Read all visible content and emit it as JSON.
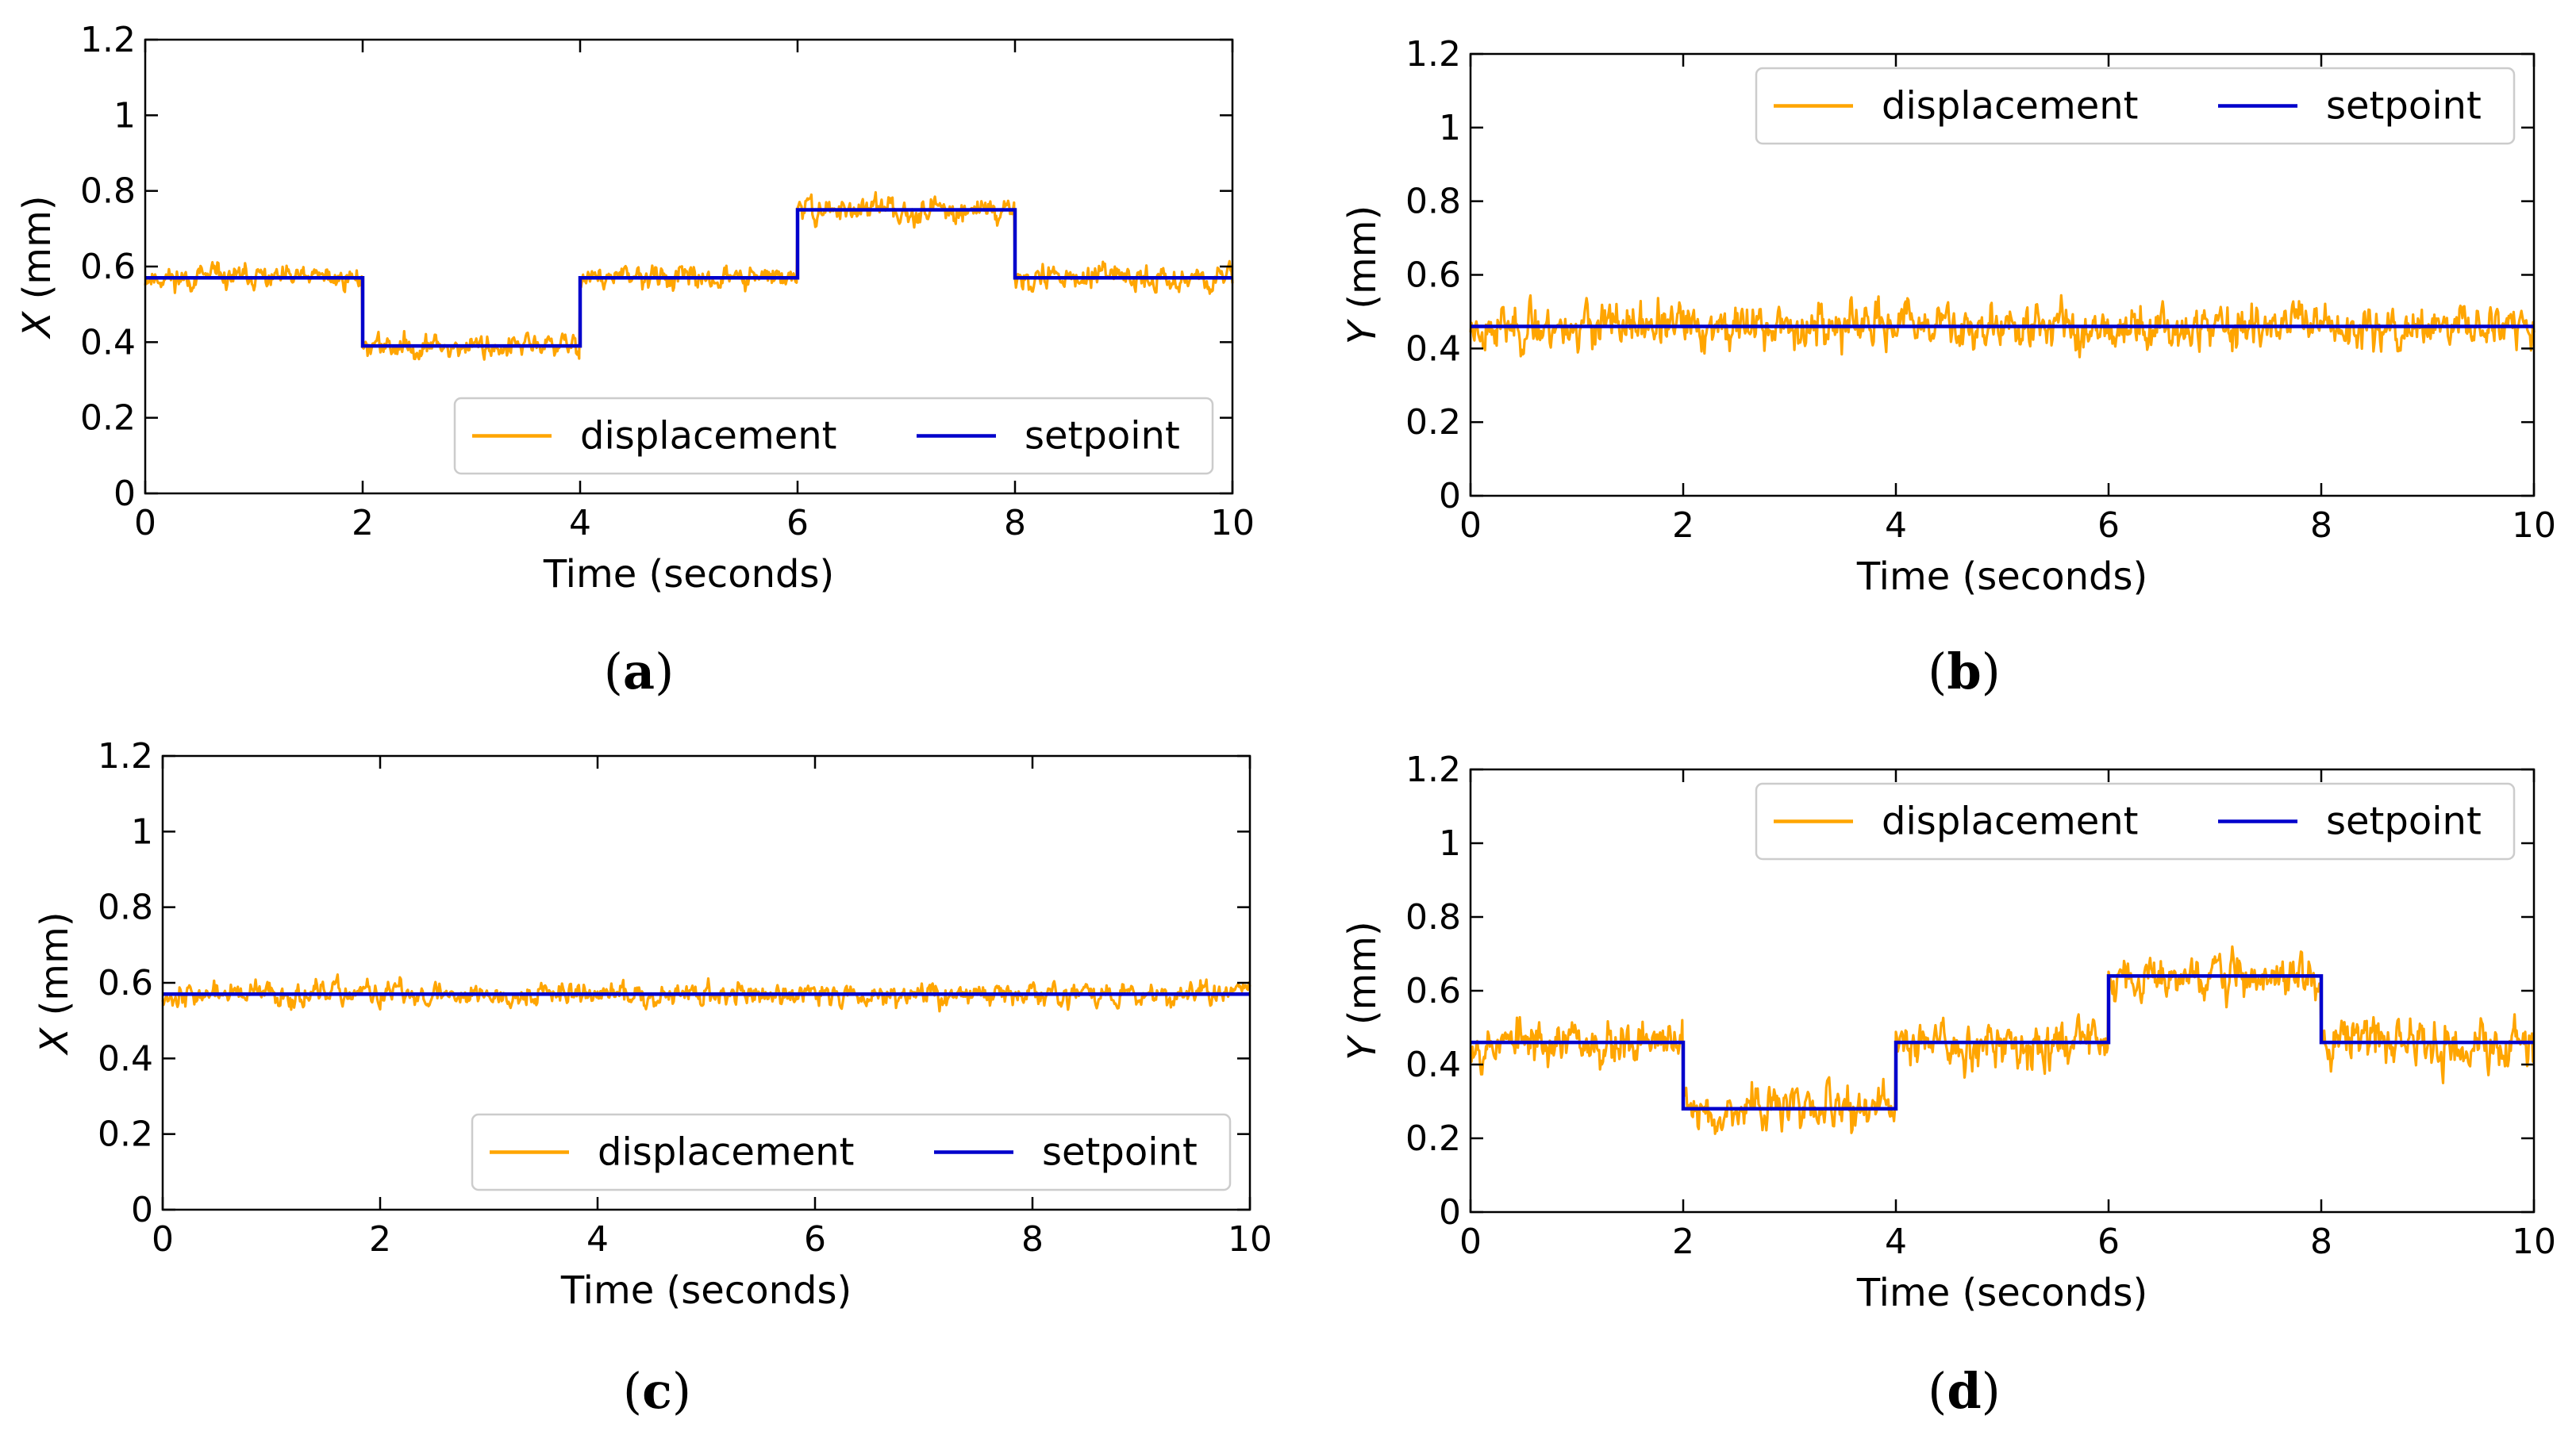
{
  "colors": {
    "displacement": "#FFA500",
    "setpoint": "#0000CC"
  },
  "chart_data": [
    {
      "type": "line",
      "caption": "(a)",
      "caption_letter": "a",
      "xlabel": "Time (seconds)",
      "ylabel": "X (mm)",
      "ylabel_var": "X",
      "ylabel_unit": " (mm)",
      "xlim": [
        0,
        10
      ],
      "ylim": [
        0,
        1.2
      ],
      "xticks": [
        0,
        2,
        4,
        6,
        8,
        10
      ],
      "xtick_labels": [
        "0",
        "2",
        "4",
        "6",
        "8",
        "10"
      ],
      "yticks": [
        0,
        0.2,
        0.4,
        0.6,
        0.8,
        1.0,
        1.2
      ],
      "ytick_labels": [
        "0",
        "0.2",
        "0.4",
        "0.6",
        "0.8",
        "1",
        "1.2"
      ],
      "legend_position": "lower-right",
      "series": [
        {
          "name": "displacement",
          "kind": "noisy",
          "noise_amplitude": 0.035,
          "seed": 11
        },
        {
          "name": "setpoint",
          "kind": "step",
          "segments": [
            [
              0,
              2,
              0.57
            ],
            [
              2,
              4,
              0.39
            ],
            [
              4,
              6,
              0.57
            ],
            [
              6,
              8,
              0.75
            ],
            [
              8,
              10,
              0.57
            ]
          ]
        }
      ]
    },
    {
      "type": "line",
      "caption": "(b)",
      "caption_letter": "b",
      "xlabel": "Time (seconds)",
      "ylabel": "Y (mm)",
      "ylabel_var": "Y",
      "ylabel_unit": " (mm)",
      "xlim": [
        0,
        10
      ],
      "ylim": [
        0,
        1.2
      ],
      "xticks": [
        0,
        2,
        4,
        6,
        8,
        10
      ],
      "xtick_labels": [
        "0",
        "2",
        "4",
        "6",
        "8",
        "10"
      ],
      "yticks": [
        0,
        0.2,
        0.4,
        0.6,
        0.8,
        1.0,
        1.2
      ],
      "ytick_labels": [
        "0",
        "0.2",
        "0.4",
        "0.6",
        "0.8",
        "1",
        "1.2"
      ],
      "legend_position": "top-right",
      "series": [
        {
          "name": "displacement",
          "kind": "noisy",
          "noise_amplitude": 0.07,
          "seed": 23
        },
        {
          "name": "setpoint",
          "kind": "step",
          "segments": [
            [
              0,
              10,
              0.46
            ]
          ]
        }
      ]
    },
    {
      "type": "line",
      "caption": "(c)",
      "caption_letter": "c",
      "xlabel": "Time (seconds)",
      "ylabel": "X (mm)",
      "ylabel_var": "X",
      "ylabel_unit": " (mm)",
      "xlim": [
        0,
        10
      ],
      "ylim": [
        0,
        1.2
      ],
      "xticks": [
        0,
        2,
        4,
        6,
        8,
        10
      ],
      "xtick_labels": [
        "0",
        "2",
        "4",
        "6",
        "8",
        "10"
      ],
      "yticks": [
        0,
        0.2,
        0.4,
        0.6,
        0.8,
        1.0,
        1.2
      ],
      "ytick_labels": [
        "0",
        "0.2",
        "0.4",
        "0.6",
        "0.8",
        "1",
        "1.2"
      ],
      "legend_position": "lower-right",
      "series": [
        {
          "name": "displacement",
          "kind": "noisy",
          "noise_amplitude": 0.035,
          "seed": 37
        },
        {
          "name": "setpoint",
          "kind": "step",
          "segments": [
            [
              0,
              10,
              0.57
            ]
          ]
        }
      ]
    },
    {
      "type": "line",
      "caption": "(d)",
      "caption_letter": "d",
      "xlabel": "Time (seconds)",
      "ylabel": "Y (mm)",
      "ylabel_var": "Y",
      "ylabel_unit": " (mm)",
      "xlim": [
        0,
        10
      ],
      "ylim": [
        0,
        1.2
      ],
      "xticks": [
        0,
        2,
        4,
        6,
        8,
        10
      ],
      "xtick_labels": [
        "0",
        "2",
        "4",
        "6",
        "8",
        "10"
      ],
      "yticks": [
        0,
        0.2,
        0.4,
        0.6,
        0.8,
        1.0,
        1.2
      ],
      "ytick_labels": [
        "0",
        "0.2",
        "0.4",
        "0.6",
        "0.8",
        "1",
        "1.2"
      ],
      "legend_position": "top-right",
      "series": [
        {
          "name": "displacement",
          "kind": "noisy",
          "noise_amplitude": 0.07,
          "seed": 53
        },
        {
          "name": "setpoint",
          "kind": "step",
          "segments": [
            [
              0,
              2,
              0.46
            ],
            [
              2,
              4,
              0.28
            ],
            [
              4,
              6,
              0.46
            ],
            [
              6,
              8,
              0.64
            ],
            [
              8,
              10,
              0.46
            ]
          ]
        }
      ]
    }
  ]
}
